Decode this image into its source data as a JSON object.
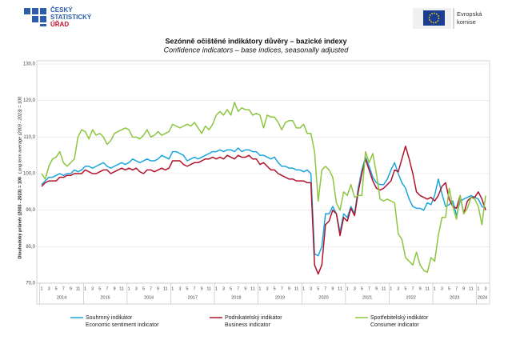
{
  "header": {
    "logo_lines": [
      "ČESKÝ",
      "STATISTICKÝ",
      "ÚŘAD"
    ],
    "eu_lines": [
      "Evropská",
      "komise"
    ]
  },
  "chart_data": {
    "type": "line",
    "title": "Sezónně očištěné indikátory důvěry – bazické indexy",
    "subtitle": "Confidence indicators – base indices, seasonally adjusted",
    "y_label": "Dlouhodobý průměr (2003 - 2023) = 100",
    "y_label_en": "Long term average (2003 - 2023) = 100",
    "years": [
      2014,
      2015,
      2016,
      2017,
      2018,
      2019,
      2020,
      2021,
      2022,
      2023,
      2024
    ],
    "month_ticks": [
      1,
      3,
      5,
      7,
      9,
      11
    ],
    "ylim": [
      70,
      130
    ],
    "yticks": [
      {
        "value": 70,
        "label": "70,0"
      },
      {
        "value": 80,
        "label": "80,0"
      },
      {
        "value": 90,
        "label": "90,0"
      },
      {
        "value": 100,
        "label": "100,0"
      },
      {
        "value": 110,
        "label": "110,0"
      },
      {
        "value": 120,
        "label": "120,0"
      },
      {
        "value": 130,
        "label": "130,0"
      }
    ],
    "grid": true,
    "series": [
      {
        "name": "Souhrnný indikátor",
        "name_en": "Economic sentiment indicator",
        "color": "#1aa5dc",
        "values": [
          97,
          98,
          99,
          99,
          99.5,
          100,
          99.5,
          100,
          100,
          101,
          100.5,
          101,
          102,
          102,
          101.5,
          102,
          102.5,
          103,
          102,
          101.5,
          102,
          102.5,
          103,
          102.5,
          103,
          104,
          103.5,
          103,
          103.5,
          104,
          103.5,
          103.5,
          104,
          105,
          104.5,
          104,
          106,
          106,
          105.5,
          105,
          103.5,
          104,
          104.5,
          104,
          104.5,
          105,
          105.5,
          106,
          106,
          106.5,
          106,
          106.5,
          106.5,
          106,
          107,
          106,
          106.5,
          106.5,
          106,
          106,
          105,
          105,
          104.5,
          104,
          104.5,
          103,
          102,
          102,
          101.5,
          101.5,
          101,
          101,
          100.5,
          101,
          100,
          78,
          77.5,
          80,
          89,
          89,
          91,
          89,
          84,
          89,
          88,
          91,
          89,
          96,
          101,
          104.5,
          102,
          99,
          97.5,
          97,
          97,
          98.5,
          101,
          103,
          100,
          97.5,
          96,
          93,
          91,
          90.5,
          90.5,
          90,
          92,
          91.5,
          94,
          98.5,
          94.5,
          91,
          91.5,
          92.5,
          88.5,
          92.5,
          93,
          93.5,
          94,
          93.5,
          93,
          91,
          90.5
        ]
      },
      {
        "name": "Podnikatelský indikátor",
        "name_en": "Business indicator",
        "color": "#b0132b",
        "values": [
          96.5,
          97.5,
          98,
          98,
          98,
          99,
          99,
          99.5,
          99.5,
          100,
          100,
          100,
          101,
          100.5,
          100,
          100,
          100.5,
          101,
          101,
          100,
          100.5,
          101,
          101.5,
          101,
          101.5,
          101,
          101.5,
          100.5,
          100,
          101,
          101,
          100.5,
          101,
          101.5,
          101,
          101.5,
          103.5,
          103.5,
          103.5,
          102.5,
          102,
          102.5,
          103,
          103,
          103.5,
          104,
          104,
          104.5,
          104,
          104.5,
          104,
          105,
          104.5,
          104,
          105,
          104.5,
          104.5,
          105,
          104,
          104,
          102.5,
          103,
          102,
          101,
          101,
          100,
          99.5,
          99,
          98.5,
          98.5,
          98,
          98,
          98,
          97.5,
          97.5,
          75,
          72.5,
          75,
          86,
          87,
          90,
          89,
          83,
          88,
          87,
          90.5,
          88.5,
          95,
          100,
          104,
          101,
          98,
          96,
          95.5,
          96,
          97,
          98,
          101,
          100.5,
          104,
          107.5,
          104,
          100,
          95,
          94,
          93.5,
          93,
          93.5,
          92.5,
          94,
          96.5,
          97.5,
          93,
          91,
          90.5,
          94,
          89,
          92.5,
          93.5,
          93.5,
          95,
          93,
          90
        ]
      },
      {
        "name": "Spotřebitelský indikátor",
        "name_en": "Consumer indicator",
        "color": "#8cc63f",
        "values": [
          100,
          98.5,
          102,
          104,
          104.5,
          106,
          103,
          102,
          103,
          104,
          110,
          112,
          111.5,
          109.5,
          112,
          110.5,
          111,
          110,
          108,
          109,
          111,
          111.5,
          112,
          112.5,
          112,
          110,
          110,
          109.5,
          110.5,
          112,
          110,
          110.5,
          111.5,
          110.5,
          111,
          111.5,
          113.5,
          113,
          112.5,
          113,
          113.5,
          113,
          114,
          112.5,
          111,
          113,
          112,
          113.5,
          116,
          117,
          116,
          117.5,
          116,
          119.5,
          117,
          118,
          117.5,
          117.5,
          116,
          116.5,
          116,
          112.5,
          116,
          115.5,
          115.5,
          114,
          112,
          114,
          114.5,
          114.5,
          112.5,
          112.5,
          113.5,
          111,
          111,
          106,
          92.5,
          101,
          102,
          101,
          99,
          92,
          90,
          95,
          94,
          97,
          93.5,
          94,
          94,
          106,
          103,
          105.5,
          100,
          93,
          92.5,
          93,
          92.5,
          92,
          83.5,
          82,
          77,
          76,
          75,
          78.5,
          75,
          73.5,
          73,
          77,
          76,
          83,
          88,
          88,
          96,
          91,
          87.5,
          94,
          89,
          90.5,
          93.5,
          93,
          91,
          86,
          94
        ]
      }
    ]
  }
}
